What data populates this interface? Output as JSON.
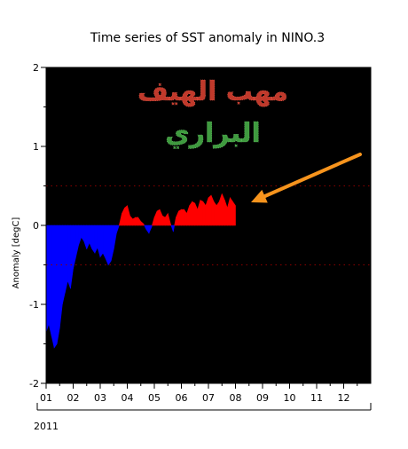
{
  "chart_data": {
    "type": "area",
    "title": "Time series of SST anomaly in NINO.3",
    "ylabel": "Anomaly [degC]",
    "xlabel": "",
    "year_label": "2011",
    "ylim": [
      -2,
      2
    ],
    "yticks": [
      -2,
      -1,
      0,
      1,
      2
    ],
    "month_labels": [
      "01",
      "02",
      "03",
      "04",
      "05",
      "06",
      "07",
      "08",
      "09",
      "10",
      "11",
      "12"
    ],
    "reference_lines": [
      0.5,
      -0.5
    ],
    "grid": false,
    "legend": "none",
    "colors": {
      "background": "#000000",
      "positive": "#ff0000",
      "negative": "#0000ff",
      "reference": "#8b0000",
      "arrow": "#f7941d"
    },
    "x_unit": "month",
    "x": [
      0,
      0.1,
      0.2,
      0.3,
      0.4,
      0.5,
      0.6,
      0.7,
      0.8,
      0.9,
      1.0,
      1.1,
      1.2,
      1.3,
      1.4,
      1.5,
      1.6,
      1.7,
      1.8,
      1.9,
      2.0,
      2.1,
      2.2,
      2.3,
      2.4,
      2.5,
      2.6,
      2.7,
      2.8,
      2.9,
      3.0,
      3.1,
      3.2,
      3.3,
      3.4,
      3.5,
      3.6,
      3.7,
      3.8,
      3.9,
      4.0,
      4.1,
      4.2,
      4.3,
      4.4,
      4.5,
      4.6,
      4.7,
      4.8,
      4.9,
      5.0,
      5.1,
      5.2,
      5.3,
      5.4,
      5.5,
      5.6,
      5.7,
      5.8,
      5.9,
      6.0,
      6.1,
      6.2,
      6.3,
      6.4,
      6.5,
      6.6,
      6.7,
      6.8,
      6.9,
      7.0
    ],
    "values": [
      -1.35,
      -1.25,
      -1.4,
      -1.55,
      -1.5,
      -1.3,
      -1.0,
      -0.85,
      -0.7,
      -0.8,
      -0.55,
      -0.4,
      -0.25,
      -0.15,
      -0.2,
      -0.3,
      -0.22,
      -0.3,
      -0.35,
      -0.28,
      -0.4,
      -0.35,
      -0.42,
      -0.5,
      -0.45,
      -0.3,
      -0.1,
      0.0,
      0.15,
      0.22,
      0.25,
      0.12,
      0.08,
      0.1,
      0.1,
      0.05,
      0.02,
      -0.05,
      -0.1,
      -0.02,
      0.1,
      0.18,
      0.2,
      0.12,
      0.1,
      0.15,
      0.02,
      -0.08,
      0.1,
      0.18,
      0.2,
      0.2,
      0.15,
      0.25,
      0.3,
      0.28,
      0.2,
      0.32,
      0.3,
      0.25,
      0.35,
      0.38,
      0.3,
      0.25,
      0.3,
      0.4,
      0.32,
      0.22,
      0.35,
      0.3,
      0.25
    ]
  },
  "watermark": {
    "line1": "مهب الهيف",
    "line2": "البراري"
  }
}
